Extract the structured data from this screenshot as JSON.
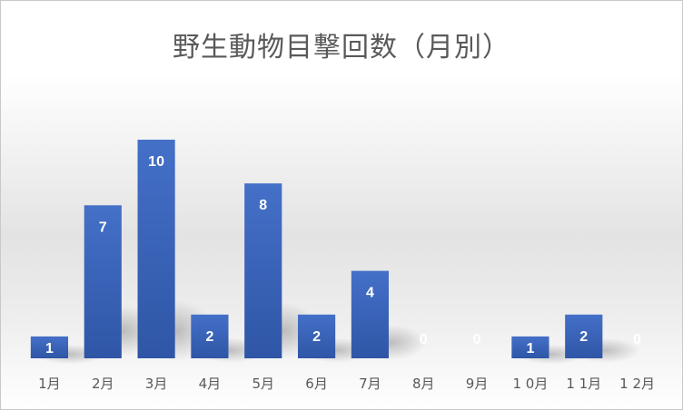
{
  "chart_data": {
    "type": "bar",
    "title": "野生動物目撃回数（月別）",
    "categories": [
      "1月",
      "2月",
      "3月",
      "4月",
      "5月",
      "6月",
      "7月",
      "8月",
      "9月",
      "10月",
      "11月",
      "12月"
    ],
    "tick_labels": [
      "1月",
      "2月",
      "3月",
      "4月",
      "5月",
      "6月",
      "7月",
      "8月",
      "9月",
      "1 0月",
      "1 1月",
      "1 2月"
    ],
    "values": [
      1,
      7,
      10,
      2,
      8,
      2,
      4,
      0,
      0,
      1,
      2,
      0
    ],
    "ylim": [
      0,
      10
    ],
    "grid": false,
    "legend": "none",
    "bar_color": "#3a63b8",
    "label_color": "#ffffff"
  }
}
